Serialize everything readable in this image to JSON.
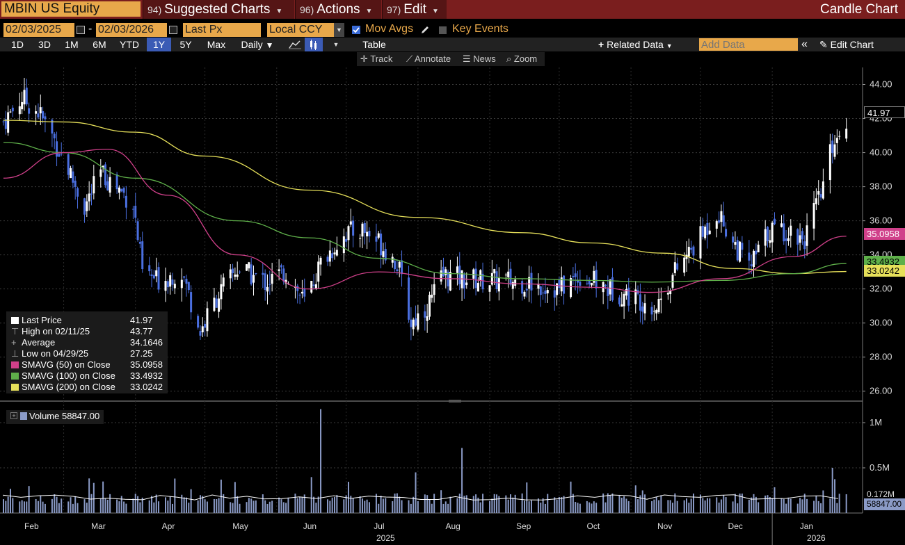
{
  "header": {
    "ticker": "MBIN US Equity",
    "menus": [
      {
        "num": "94)",
        "label": "Suggested Charts"
      },
      {
        "num": "96)",
        "label": "Actions"
      },
      {
        "num": "97)",
        "label": "Edit"
      }
    ],
    "chart_title": "Candle Chart"
  },
  "controls": {
    "start_date": "02/03/2025",
    "dash": "-",
    "end_date": "02/03/2026",
    "price_field": "Last Px",
    "currency": "Local CCY",
    "mov_avgs_label": "Mov Avgs",
    "mov_avgs_checked": true,
    "key_events_label": "Key Events",
    "key_events_checked": false
  },
  "ranges": [
    "1D",
    "3D",
    "1M",
    "6M",
    "YTD",
    "1Y",
    "5Y",
    "Max"
  ],
  "selected_range": "1Y",
  "frequency": "Daily",
  "table_label": "Table",
  "related_data_label": "Related Data",
  "add_data_placeholder": "Add Data",
  "edit_chart_label": "Edit Chart",
  "tools": [
    "Track",
    "Annotate",
    "News",
    "Zoom"
  ],
  "legend": {
    "rows": [
      {
        "label": "Last Price",
        "value": "41.97",
        "swatch": "#ffffff"
      },
      {
        "label": "High on 02/11/25",
        "value": "43.77",
        "swatch": ""
      },
      {
        "label": "Average",
        "value": "34.1646",
        "swatch": ""
      },
      {
        "label": "Low on 04/29/25",
        "value": "27.25",
        "swatch": ""
      },
      {
        "label": "SMAVG (50)  on Close",
        "value": "35.0958",
        "swatch": "#d0408a"
      },
      {
        "label": "SMAVG (100)  on Close",
        "value": "33.4932",
        "swatch": "#5fb04a"
      },
      {
        "label": "SMAVG (200)  on Close",
        "value": "33.0242",
        "swatch": "#e6e05a"
      }
    ]
  },
  "volume_legend": "Volume  58847.00",
  "tags": {
    "last": "41.97",
    "sma50": "35.0958",
    "sma100": "33.4932",
    "sma200": "33.0242",
    "vol_avg": "0.172M",
    "vol_last": "58847.00"
  },
  "colors": {
    "up": "#ffffff",
    "down": "#4a6fe0",
    "sma50": "#d0408a",
    "sma100": "#5fb04a",
    "sma200": "#e6e05a",
    "accent": "#e8a84a",
    "header_bg": "#7a1e1e"
  },
  "chart_data": {
    "type": "candlestick",
    "price_axis": {
      "ticks": [
        "44.00",
        "42.00",
        "40.00",
        "38.00",
        "36.00",
        "34.00",
        "32.00",
        "30.00",
        "28.00",
        "26.00"
      ],
      "ylim": [
        25.5,
        45
      ]
    },
    "volume_axis": {
      "ticks": [
        "1M",
        "0.5M"
      ],
      "ylim": [
        0,
        1.2
      ]
    },
    "x_months": [
      "Feb",
      "Mar",
      "Apr",
      "May",
      "Jun",
      "Jul",
      "Aug",
      "Sep",
      "Oct",
      "Nov",
      "Dec",
      "Jan"
    ],
    "x_years": [
      "2025",
      "2026"
    ],
    "close_path": [
      [
        "2025-02-03",
        41.8
      ],
      [
        "2025-02-11",
        43.2
      ],
      [
        "2025-02-18",
        42.4
      ],
      [
        "2025-02-24",
        41.0
      ],
      [
        "2025-03-03",
        39.0
      ],
      [
        "2025-03-10",
        36.8
      ],
      [
        "2025-03-17",
        38.8
      ],
      [
        "2025-03-24",
        38.0
      ],
      [
        "2025-03-31",
        37.0
      ],
      [
        "2025-04-04",
        33.0
      ],
      [
        "2025-04-10",
        32.5
      ],
      [
        "2025-04-21",
        33.0
      ],
      [
        "2025-04-29",
        29.5
      ],
      [
        "2025-05-06",
        31.5
      ],
      [
        "2025-05-15",
        33.2
      ],
      [
        "2025-05-27",
        32.4
      ],
      [
        "2025-06-05",
        33.0
      ],
      [
        "2025-06-13",
        31.2
      ],
      [
        "2025-06-20",
        33.5
      ],
      [
        "2025-06-30",
        35.2
      ],
      [
        "2025-07-08",
        35.5
      ],
      [
        "2025-07-15",
        34.8
      ],
      [
        "2025-07-23",
        33.5
      ],
      [
        "2025-07-29",
        30.0
      ],
      [
        "2025-08-05",
        31.0
      ],
      [
        "2025-08-12",
        32.8
      ],
      [
        "2025-08-20",
        32.6
      ],
      [
        "2025-09-02",
        32.5
      ],
      [
        "2025-09-15",
        32.4
      ],
      [
        "2025-10-01",
        32.0
      ],
      [
        "2025-10-10",
        32.8
      ],
      [
        "2025-10-20",
        32.1
      ],
      [
        "2025-11-03",
        31.5
      ],
      [
        "2025-11-12",
        31.0
      ],
      [
        "2025-11-20",
        33.0
      ],
      [
        "2025-12-01",
        35.0
      ],
      [
        "2025-12-08",
        36.6
      ],
      [
        "2025-12-15",
        34.8
      ],
      [
        "2025-12-22",
        33.2
      ],
      [
        "2025-12-31",
        35.5
      ],
      [
        "2026-01-08",
        35.4
      ],
      [
        "2026-01-15",
        35.0
      ],
      [
        "2026-01-22",
        37.5
      ],
      [
        "2026-01-27",
        40.5
      ],
      [
        "2026-02-02",
        41.97
      ]
    ],
    "sma50": [
      [
        "2025-02-03",
        38.5
      ],
      [
        "2025-03-01",
        40.0
      ],
      [
        "2025-03-20",
        40.2
      ],
      [
        "2025-04-15",
        37.5
      ],
      [
        "2025-05-15",
        34.0
      ],
      [
        "2025-06-15",
        32.0
      ],
      [
        "2025-07-15",
        33.0
      ],
      [
        "2025-08-15",
        32.6
      ],
      [
        "2025-09-15",
        32.3
      ],
      [
        "2025-10-15",
        32.1
      ],
      [
        "2025-11-10",
        31.8
      ],
      [
        "2025-12-10",
        32.6
      ],
      [
        "2026-01-10",
        33.9
      ],
      [
        "2026-02-02",
        35.0958
      ]
    ],
    "sma100": [
      [
        "2025-02-03",
        40.6
      ],
      [
        "2025-03-01",
        40.0
      ],
      [
        "2025-04-01",
        38.5
      ],
      [
        "2025-05-15",
        36.0
      ],
      [
        "2025-06-15",
        35.0
      ],
      [
        "2025-07-15",
        33.8
      ],
      [
        "2025-08-15",
        32.9
      ],
      [
        "2025-09-15",
        32.6
      ],
      [
        "2025-10-15",
        32.5
      ],
      [
        "2025-11-10",
        32.4
      ],
      [
        "2025-12-10",
        32.5
      ],
      [
        "2026-01-10",
        32.9
      ],
      [
        "2026-02-02",
        33.4932
      ]
    ],
    "sma200": [
      [
        "2025-02-03",
        41.9
      ],
      [
        "2025-03-01",
        41.8
      ],
      [
        "2025-04-01",
        41.2
      ],
      [
        "2025-05-01",
        39.8
      ],
      [
        "2025-06-15",
        37.8
      ],
      [
        "2025-08-01",
        36.2
      ],
      [
        "2025-09-15",
        35.3
      ],
      [
        "2025-10-15",
        34.7
      ],
      [
        "2025-11-15",
        34.1
      ],
      [
        "2025-12-15",
        33.2
      ],
      [
        "2026-01-10",
        32.9
      ],
      [
        "2026-02-02",
        33.0242
      ]
    ],
    "volume_avg_m": 0.172,
    "volume_last": 58847.0,
    "volume_spikes_m": [
      [
        "2025-06-20",
        1.15
      ],
      [
        "2025-07-31",
        0.45
      ],
      [
        "2025-08-20",
        0.72
      ],
      [
        "2026-01-27",
        0.5
      ]
    ]
  }
}
